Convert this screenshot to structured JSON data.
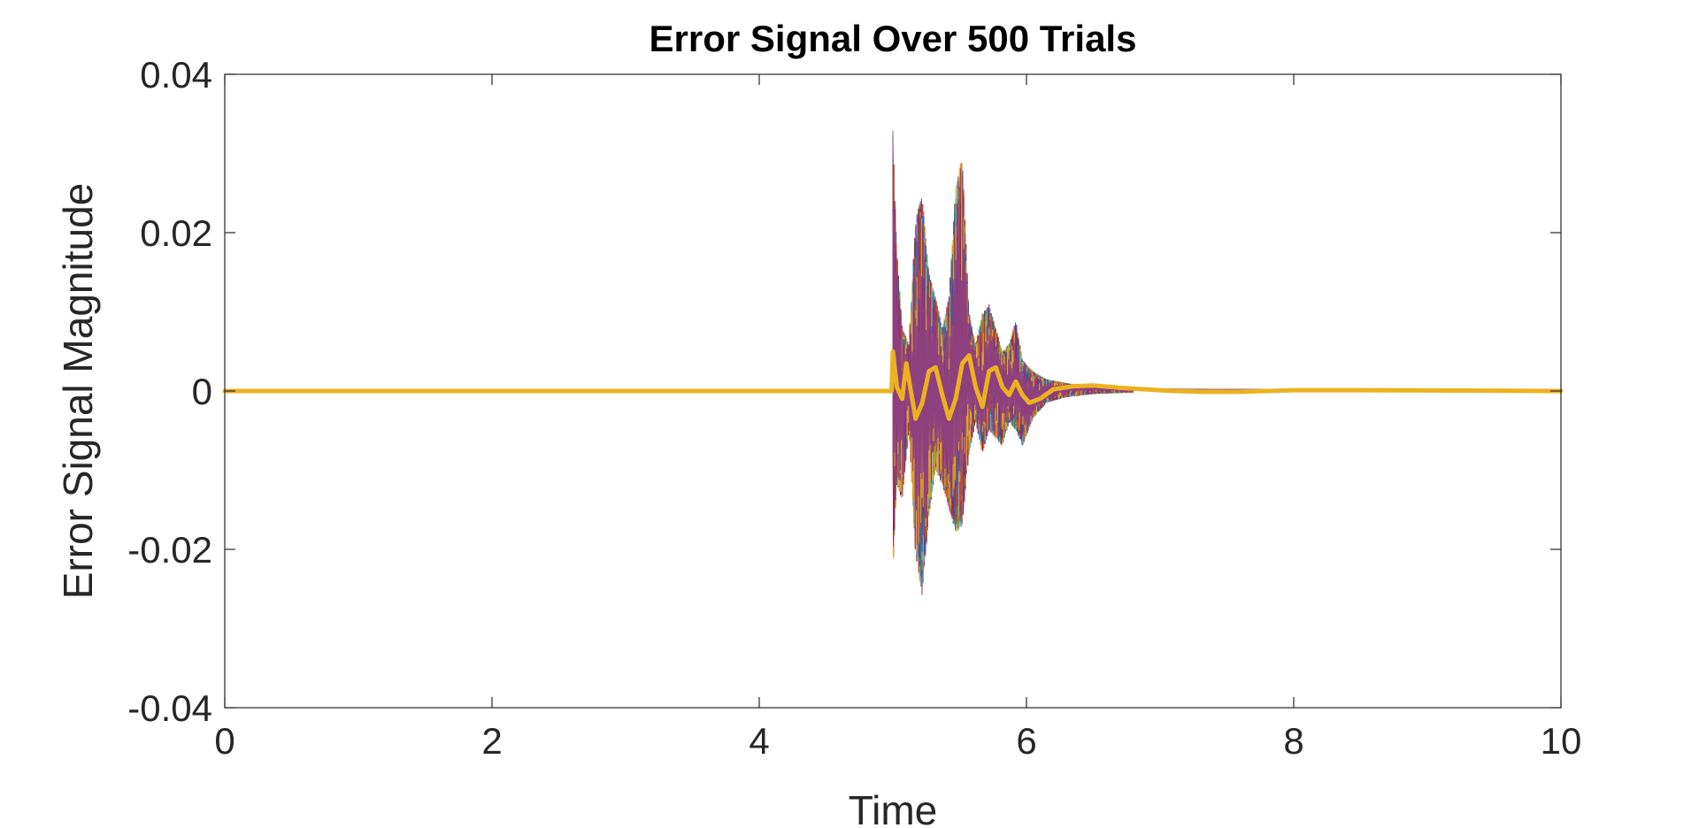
{
  "chart_data": {
    "type": "line",
    "title": "Error Signal Over 500 Trials",
    "xlabel": "Time",
    "ylabel": "Error Signal Magnitude",
    "xlim": [
      0,
      10
    ],
    "ylim": [
      -0.04,
      0.04
    ],
    "x_ticks": [
      0,
      2,
      4,
      6,
      8,
      10
    ],
    "y_ticks": [
      -0.04,
      -0.02,
      0,
      0.02,
      0.04
    ],
    "x_tick_labels": [
      "0",
      "2",
      "4",
      "6",
      "8",
      "10"
    ],
    "y_tick_labels": [
      "-0.04",
      "-0.02",
      "0",
      "0.02",
      "0.04"
    ],
    "grid": false,
    "legend": "none",
    "trial_count": 500,
    "trial_colors": [
      "#0072BD",
      "#D95319",
      "#EDB120",
      "#7E2F8E",
      "#77AC30",
      "#4DBEEE",
      "#A2142F"
    ],
    "series": [
      {
        "role": "mean",
        "color": "#EDB120",
        "x": [
          0,
          4.99,
          5.0,
          5.03,
          5.07,
          5.1,
          5.13,
          5.17,
          5.22,
          5.27,
          5.32,
          5.37,
          5.42,
          5.47,
          5.52,
          5.57,
          5.62,
          5.67,
          5.72,
          5.77,
          5.82,
          5.87,
          5.92,
          5.97,
          6.02,
          6.1,
          6.2,
          6.35,
          6.5,
          6.7,
          6.9,
          7.1,
          7.3,
          7.6,
          8.0,
          8.5,
          10.0
        ],
        "y": [
          0,
          0,
          0.005,
          0.0005,
          -0.001,
          0.0035,
          0.0005,
          -0.0035,
          -0.0015,
          0.0025,
          0.003,
          -0.0005,
          -0.0035,
          -0.001,
          0.0035,
          0.0045,
          0.0005,
          -0.002,
          0.0025,
          0.003,
          0.0005,
          -0.0005,
          0.0012,
          -0.0005,
          -0.0015,
          -0.001,
          0.0002,
          0.0006,
          0.0007,
          0.0004,
          0.0002,
          0.0,
          -0.0001,
          -0.0001,
          0.0001,
          0.0001,
          0
        ]
      }
    ],
    "trial_envelope": {
      "x": [
        5.0,
        5.03,
        5.07,
        5.12,
        5.17,
        5.22,
        5.27,
        5.32,
        5.37,
        5.42,
        5.47,
        5.52,
        5.57,
        5.62,
        5.67,
        5.72,
        5.77,
        5.82,
        5.87,
        5.92,
        5.97,
        6.05,
        6.15,
        6.3,
        6.5,
        6.8
      ],
      "upper": [
        0.033,
        0.018,
        0.008,
        0.006,
        0.022,
        0.025,
        0.015,
        0.012,
        0.008,
        0.012,
        0.026,
        0.03,
        0.01,
        0.006,
        0.01,
        0.011,
        0.008,
        0.005,
        0.006,
        0.009,
        0.004,
        0.0025,
        0.0015,
        0.001,
        0.0005,
        0.0002
      ],
      "lower": [
        -0.023,
        -0.012,
        -0.014,
        -0.005,
        -0.021,
        -0.026,
        -0.016,
        -0.01,
        -0.012,
        -0.015,
        -0.018,
        -0.017,
        -0.008,
        -0.004,
        -0.008,
        -0.005,
        -0.006,
        -0.007,
        -0.004,
        -0.005,
        -0.007,
        -0.0035,
        -0.0015,
        -0.0008,
        -0.0004,
        -0.0002
      ]
    }
  }
}
